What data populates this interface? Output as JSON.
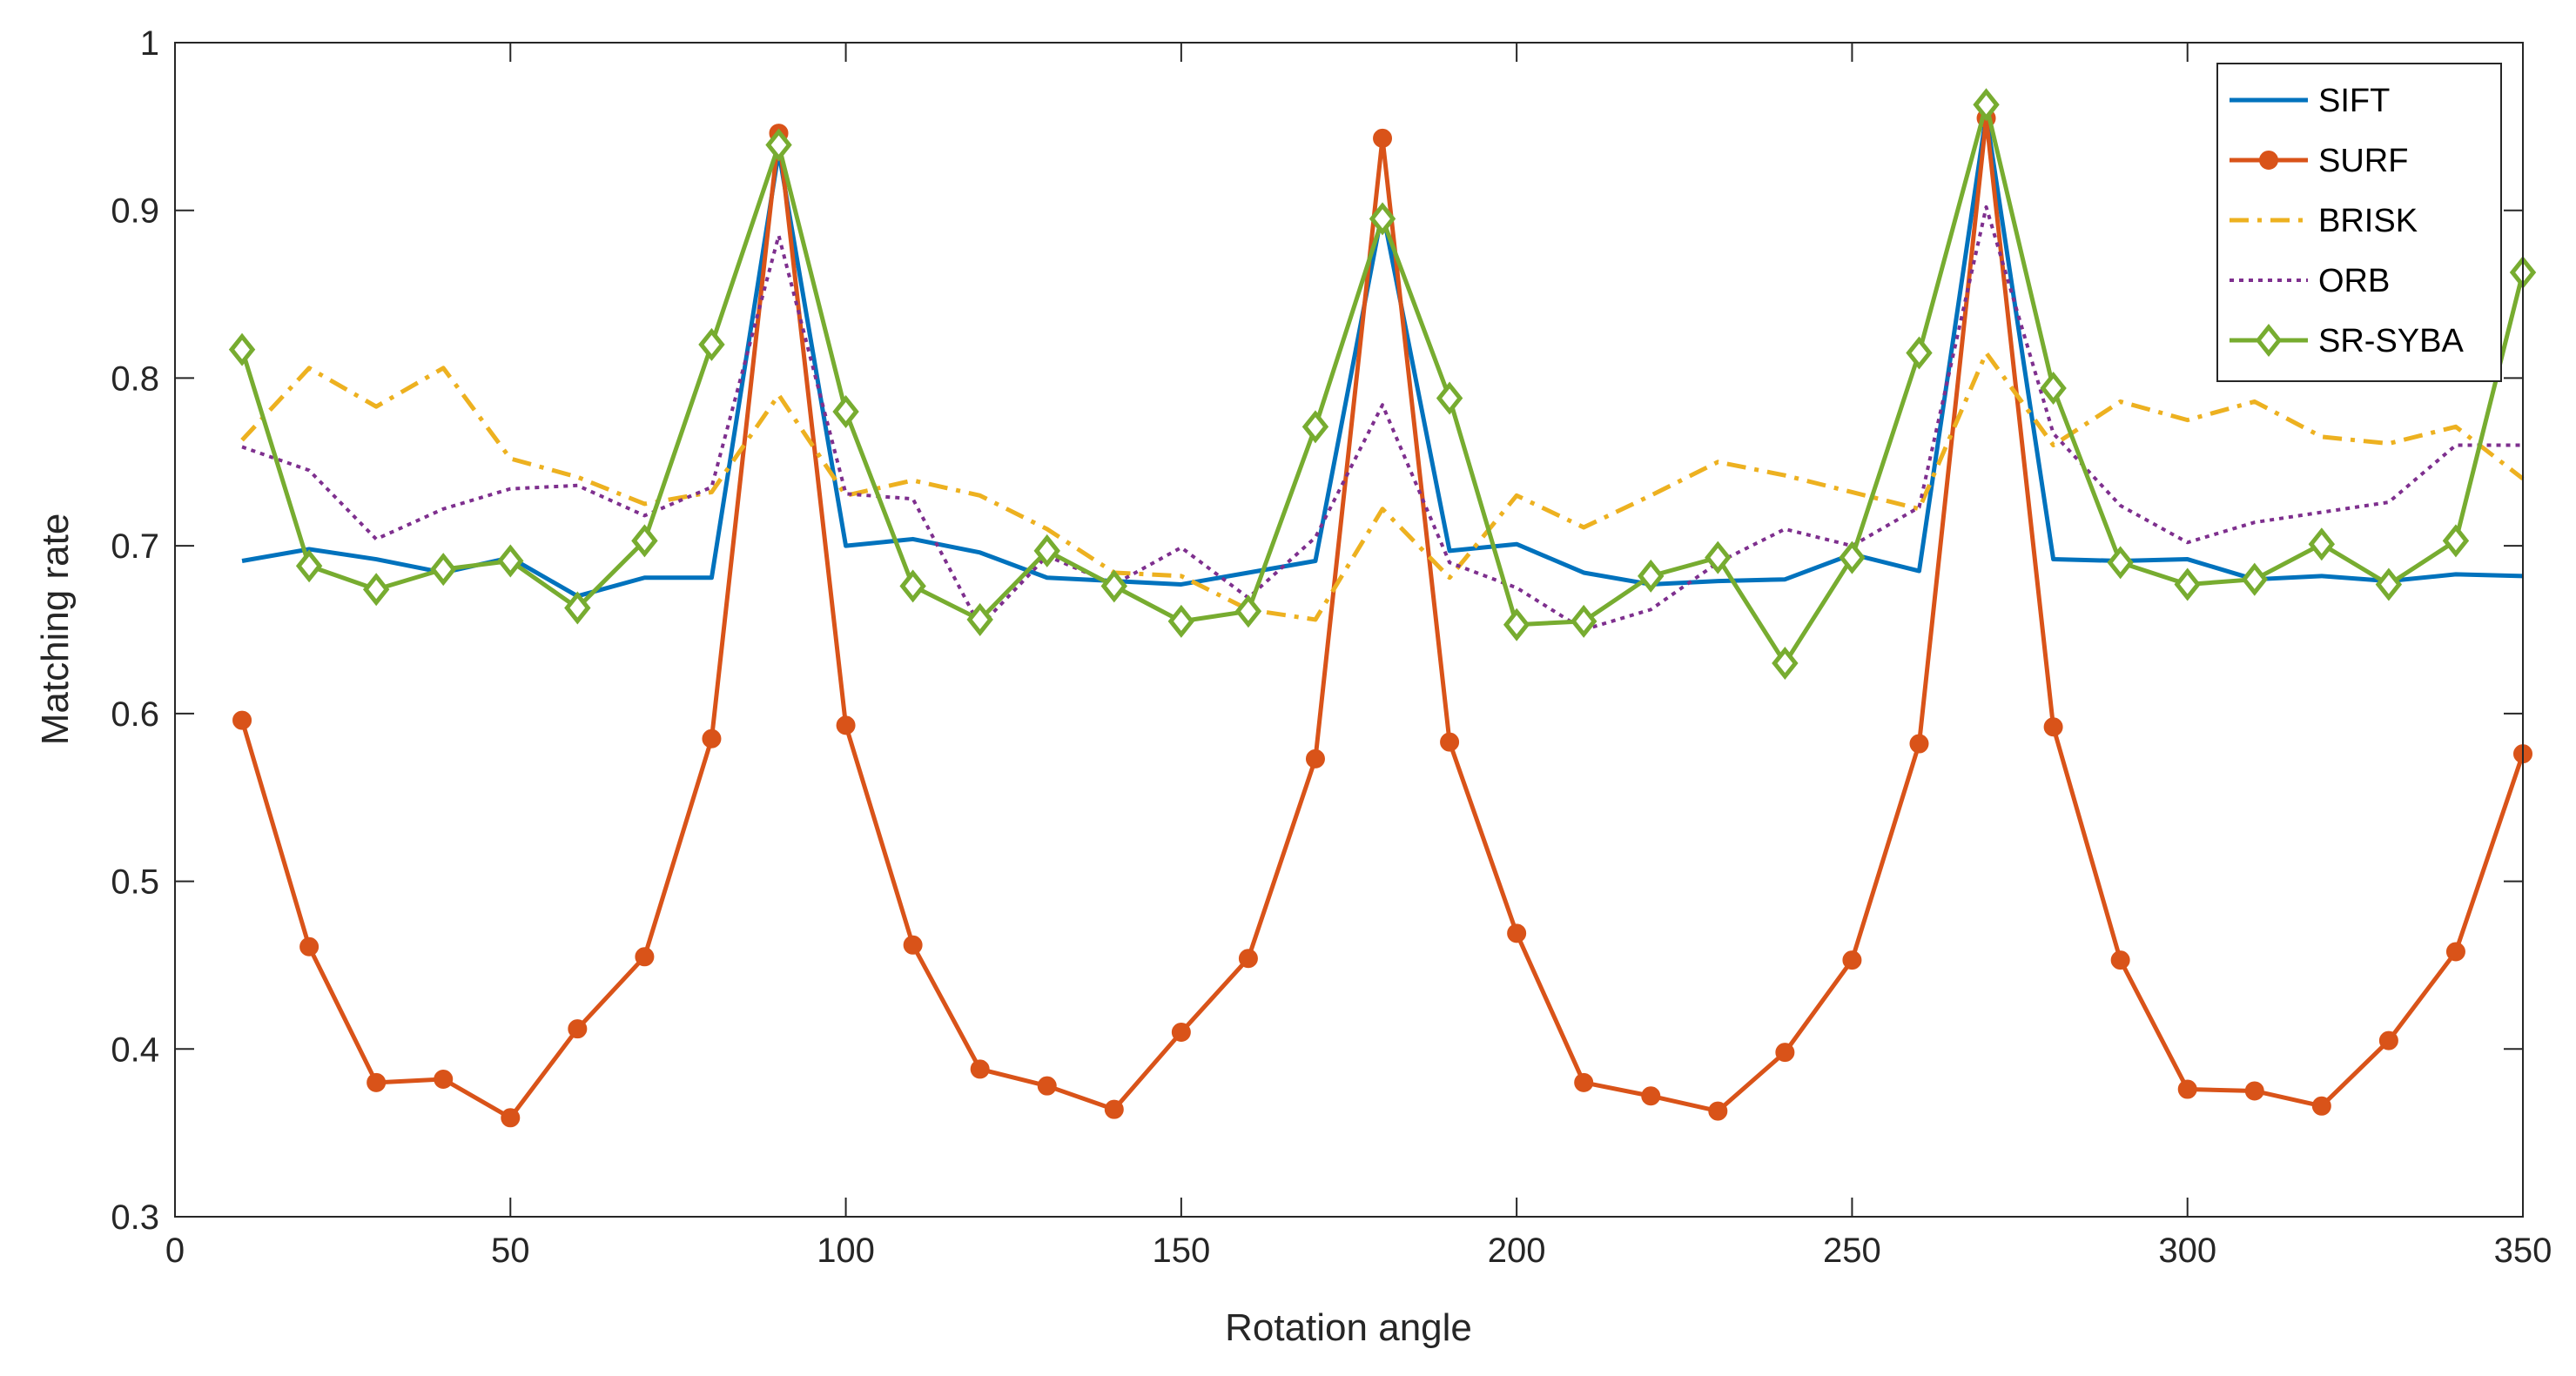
{
  "chart_data": {
    "type": "line",
    "xlabel": "Rotation angle",
    "ylabel": "Matching rate",
    "xlim": [
      0,
      350
    ],
    "ylim": [
      0.3,
      1.0
    ],
    "xticks": [
      0,
      50,
      100,
      150,
      200,
      250,
      300,
      350
    ],
    "yticks": [
      0.3,
      0.4,
      0.5,
      0.6,
      0.7,
      0.8,
      0.9,
      1.0
    ],
    "ytick_labels": [
      "0.3",
      "0.4",
      "0.5",
      "0.6",
      "0.7",
      "0.8",
      "0.9",
      "1"
    ],
    "grid": false,
    "legend_position": "top-right",
    "x": [
      10,
      20,
      30,
      40,
      50,
      60,
      70,
      80,
      90,
      100,
      110,
      120,
      130,
      140,
      150,
      160,
      170,
      180,
      190,
      200,
      210,
      220,
      230,
      240,
      250,
      260,
      270,
      280,
      290,
      300,
      310,
      320,
      330,
      340,
      350
    ],
    "series": [
      {
        "name": "SIFT",
        "color": "#0072BD",
        "style": "solid",
        "marker": "none",
        "values": [
          0.691,
          0.698,
          0.692,
          0.684,
          0.693,
          0.67,
          0.681,
          0.681,
          0.935,
          0.7,
          0.704,
          0.696,
          0.681,
          0.679,
          0.677,
          0.684,
          0.691,
          0.9,
          0.697,
          0.701,
          0.684,
          0.677,
          0.679,
          0.68,
          0.695,
          0.685,
          0.957,
          0.692,
          0.691,
          0.692,
          0.68,
          0.682,
          0.679,
          0.683,
          0.682
        ]
      },
      {
        "name": "SURF",
        "color": "#D95319",
        "style": "solid",
        "marker": "circle",
        "values": [
          0.596,
          0.461,
          0.38,
          0.382,
          0.359,
          0.412,
          0.455,
          0.585,
          0.946,
          0.593,
          0.462,
          0.388,
          0.378,
          0.364,
          0.41,
          0.454,
          0.573,
          0.943,
          0.583,
          0.469,
          0.38,
          0.372,
          0.363,
          0.398,
          0.453,
          0.582,
          0.955,
          0.592,
          0.453,
          0.376,
          0.375,
          0.366,
          0.405,
          0.458,
          0.576
        ]
      },
      {
        "name": "BRISK",
        "color": "#EDB120",
        "style": "dashdot",
        "marker": "none",
        "values": [
          0.763,
          0.806,
          0.783,
          0.806,
          0.752,
          0.741,
          0.725,
          0.732,
          0.79,
          0.73,
          0.739,
          0.73,
          0.71,
          0.684,
          0.682,
          0.662,
          0.656,
          0.722,
          0.681,
          0.73,
          0.711,
          0.73,
          0.75,
          0.742,
          0.732,
          0.722,
          0.815,
          0.76,
          0.786,
          0.775,
          0.786,
          0.765,
          0.761,
          0.771,
          0.74
        ]
      },
      {
        "name": "ORB",
        "color": "#7E2F8E",
        "style": "dotted",
        "marker": "none",
        "values": [
          0.759,
          0.745,
          0.704,
          0.722,
          0.734,
          0.736,
          0.718,
          0.735,
          0.885,
          0.731,
          0.728,
          0.652,
          0.694,
          0.677,
          0.699,
          0.669,
          0.705,
          0.784,
          0.69,
          0.675,
          0.65,
          0.662,
          0.69,
          0.71,
          0.7,
          0.723,
          0.902,
          0.767,
          0.724,
          0.702,
          0.714,
          0.72,
          0.726,
          0.76,
          0.76
        ]
      },
      {
        "name": "SR-SYBA",
        "color": "#77AC30",
        "style": "solid",
        "marker": "diamond",
        "values": [
          0.817,
          0.688,
          0.674,
          0.686,
          0.691,
          0.663,
          0.703,
          0.82,
          0.939,
          0.78,
          0.676,
          0.656,
          0.697,
          0.676,
          0.655,
          0.661,
          0.771,
          0.895,
          0.788,
          0.653,
          0.655,
          0.682,
          0.693,
          0.63,
          0.693,
          0.815,
          0.963,
          0.794,
          0.69,
          0.677,
          0.68,
          0.701,
          0.677,
          0.703,
          0.863
        ]
      }
    ]
  }
}
